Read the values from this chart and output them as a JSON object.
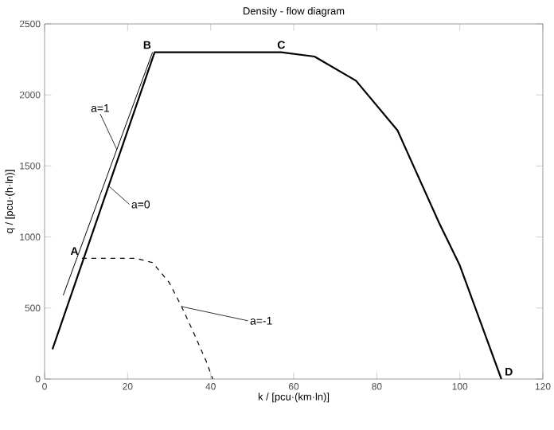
{
  "chart_data": {
    "type": "line",
    "title": "Density - flow diagram",
    "xlabel": "k / [pcu·(km·ln)]",
    "ylabel": "q / [pcu·(h·ln)]",
    "xlim": [
      0,
      120
    ],
    "ylim": [
      0,
      2500
    ],
    "xticks": [
      0,
      20,
      40,
      60,
      80,
      100,
      120
    ],
    "yticks": [
      0,
      500,
      1000,
      1500,
      2000,
      2500
    ],
    "grid": false,
    "legend": false,
    "series": [
      {
        "name": "a=1",
        "color": "#000000",
        "line_style": "solid",
        "x": [
          4.5,
          26
        ],
        "values": [
          590,
          2300
        ]
      },
      {
        "name": "a=0",
        "color": "#000000",
        "line_style": "solid",
        "x": [
          1.9,
          26.5,
          57,
          65,
          75,
          85,
          95,
          100,
          105,
          110
        ],
        "values": [
          210,
          2300,
          2300,
          2270,
          2100,
          1750,
          1100,
          800,
          400,
          0
        ]
      },
      {
        "name": "a=-1",
        "color": "#000000",
        "line_style": "dashed",
        "x": [
          9,
          22,
          26,
          30,
          33,
          36,
          39,
          40.5
        ],
        "values": [
          850,
          850,
          820,
          680,
          510,
          320,
          120,
          0
        ]
      }
    ],
    "annotations": [
      {
        "text": "A",
        "x": 9,
        "y": 850
      },
      {
        "text": "B",
        "x": 26.5,
        "y": 2300
      },
      {
        "text": "C",
        "x": 57,
        "y": 2300
      },
      {
        "text": "D",
        "x": 110,
        "y": 0
      }
    ]
  }
}
